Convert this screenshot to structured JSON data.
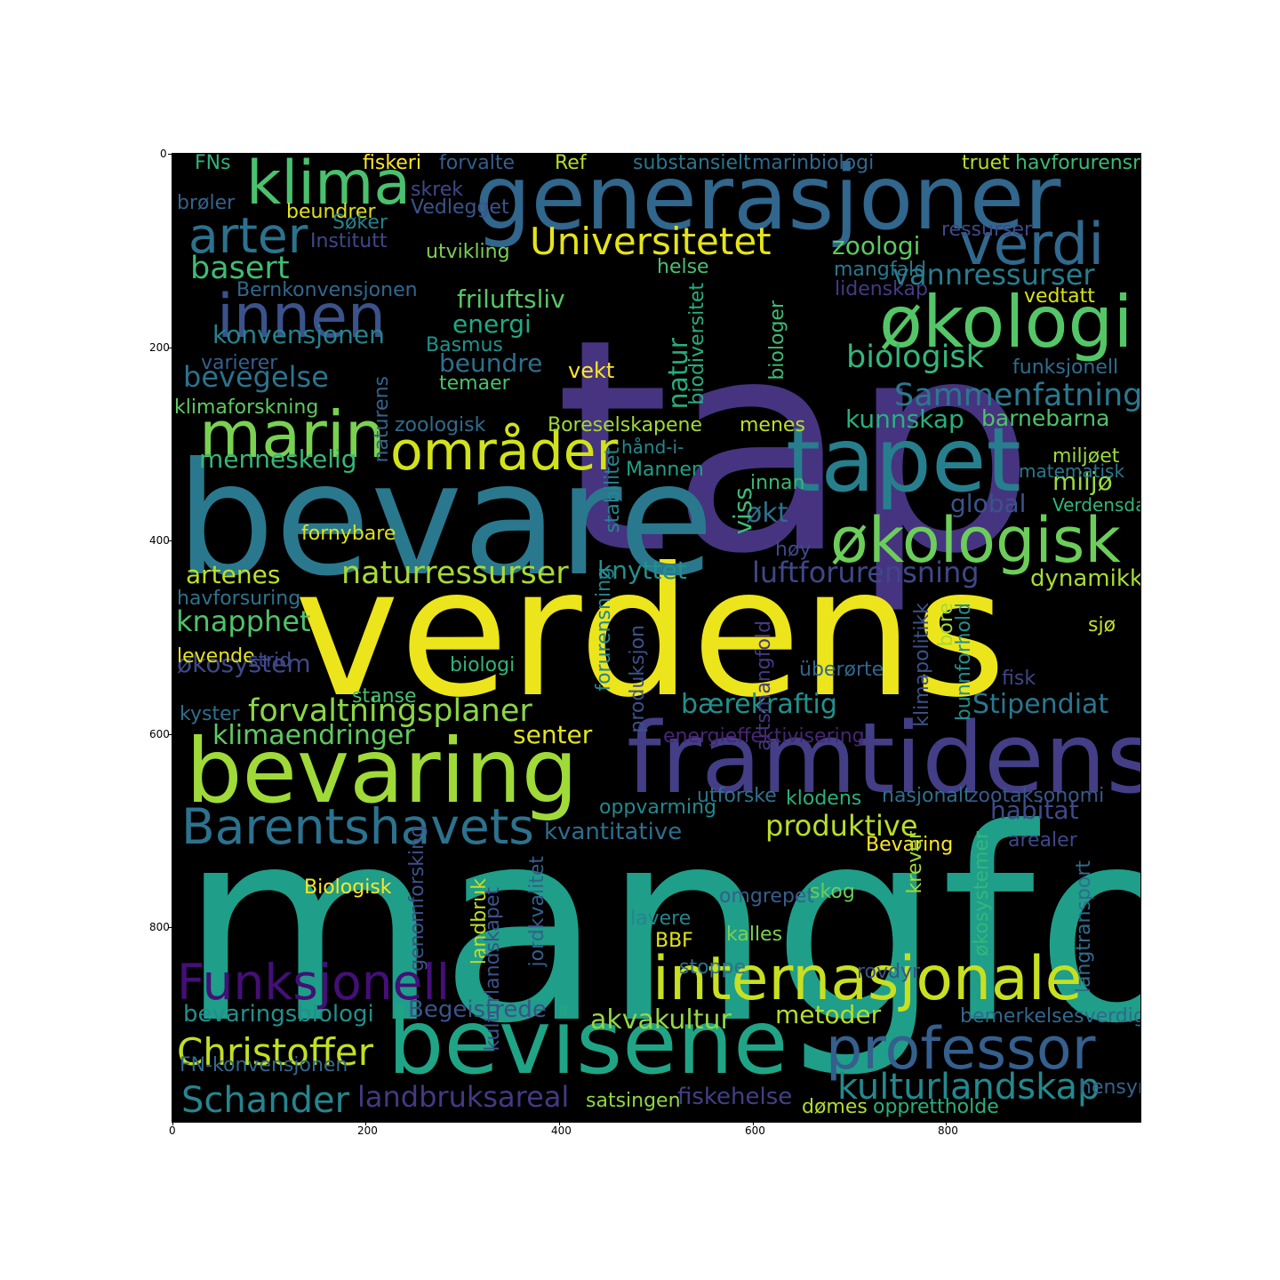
{
  "axes": {
    "x_ticks": [
      "0",
      "200",
      "400",
      "600",
      "800"
    ],
    "y_ticks": [
      "0",
      "200",
      "400",
      "600",
      "800"
    ]
  },
  "words": [
    {
      "t": "tap",
      "c": "#463480"
    },
    {
      "t": "mangfold",
      "c": "#1f9e89"
    },
    {
      "t": "verdens",
      "c": "#ede51b"
    },
    {
      "t": "bevare",
      "c": "#2a788e"
    },
    {
      "t": "generasjoner",
      "c": "#31668d"
    },
    {
      "t": "framtidens",
      "c": "#433e85"
    },
    {
      "t": "bevaring",
      "c": "#a0da39"
    },
    {
      "t": "bevisene",
      "c": "#20a486"
    },
    {
      "t": "tapet",
      "c": "#277f8e"
    },
    {
      "t": "økologi",
      "c": "#55c667"
    },
    {
      "t": "økologisk",
      "c": "#6ccd5a"
    },
    {
      "t": "internasjonale",
      "c": "#c8e020"
    },
    {
      "t": "professor",
      "c": "#355f8d"
    },
    {
      "t": "marin",
      "c": "#7ad151"
    },
    {
      "t": "klima",
      "c": "#4ac16d"
    },
    {
      "t": "innen",
      "c": "#3b528b"
    },
    {
      "t": "områder",
      "c": "#d2e21b"
    },
    {
      "t": "verdi",
      "c": "#31688e"
    },
    {
      "t": "arter",
      "c": "#2c728e"
    },
    {
      "t": "Barentshavets",
      "c": "#2c728e"
    },
    {
      "t": "Funksjonell",
      "c": "#440f76"
    },
    {
      "t": "Universitetet",
      "c": "#e5e419"
    },
    {
      "t": "Christoffer",
      "c": "#c2df23"
    },
    {
      "t": "Schander",
      "c": "#25858e"
    },
    {
      "t": "kulturlandskap",
      "c": "#23898e"
    },
    {
      "t": "forvaltningsplaner",
      "c": "#8bd646"
    },
    {
      "t": "naturressurser",
      "c": "#a8db34"
    },
    {
      "t": "basert",
      "c": "#3fbc73"
    },
    {
      "t": "biologisk",
      "c": "#35b779"
    },
    {
      "t": "Sammenfatning",
      "c": "#2a788e"
    },
    {
      "t": "vannressurser",
      "c": "#287c8e"
    },
    {
      "t": "bevegelse",
      "c": "#2c738e"
    },
    {
      "t": "luftforurensning",
      "c": "#3f4788"
    },
    {
      "t": "knapphet",
      "c": "#4ec36b"
    },
    {
      "t": "produktive",
      "c": "#bade28"
    },
    {
      "t": "landbruksareal",
      "c": "#443983"
    },
    {
      "t": "akvakultur",
      "c": "#93d741"
    },
    {
      "t": "klimaendringer",
      "c": "#5ec962"
    },
    {
      "t": "bærekraftig",
      "c": "#21918c"
    },
    {
      "t": "Stipendiat",
      "c": "#2a768e"
    },
    {
      "t": "friluftsliv",
      "c": "#56c667"
    },
    {
      "t": "konvensjonen",
      "c": "#26828e"
    },
    {
      "t": "menneskelig",
      "c": "#35b779"
    },
    {
      "t": "kunnskap",
      "c": "#29af7f"
    },
    {
      "t": "artenes",
      "c": "#c0df25"
    },
    {
      "t": "økosystem",
      "c": "#3e4989"
    },
    {
      "t": "zoologi",
      "c": "#5ec962"
    },
    {
      "t": "energi",
      "c": "#22a884"
    },
    {
      "t": "beundre",
      "c": "#2d708e"
    },
    {
      "t": "global",
      "c": "#3b528b"
    },
    {
      "t": "knyttet",
      "c": "#21918c"
    },
    {
      "t": "miljø",
      "c": "#9bd93c"
    },
    {
      "t": "habitat",
      "c": "#3e4a89"
    },
    {
      "t": "metoder",
      "c": "#b5de2b"
    },
    {
      "t": "senter",
      "c": "#e2e418"
    },
    {
      "t": "bevaringsbiologi",
      "c": "#21908d"
    },
    {
      "t": "Begeistrede",
      "c": "#3b528b"
    },
    {
      "t": "fiskehelse",
      "c": "#423f85"
    },
    {
      "t": "natur",
      "c": "#27ad81"
    },
    {
      "t": "økt",
      "c": "#2d708e"
    },
    {
      "t": "viss",
      "c": "#3dbc74"
    },
    {
      "t": "dynamikk",
      "c": "#a8db34"
    },
    {
      "t": "barnebarna",
      "c": "#4ec36b"
    },
    {
      "t": "kvantitative",
      "c": "#2e6e8e"
    },
    {
      "t": "klodens",
      "c": "#2ab07f"
    },
    {
      "t": "forurensning",
      "c": "#24868e"
    },
    {
      "t": "biodiversitet",
      "c": "#27ad81"
    },
    {
      "t": "FN-konvensjonen",
      "c": "#30698e"
    },
    {
      "t": "satsingen",
      "c": "#90d743"
    },
    {
      "t": "opprettholde",
      "c": "#2ab07f"
    },
    {
      "t": "dømes",
      "c": "#b0dd2f"
    },
    {
      "t": "hensyn",
      "c": "#33638d"
    },
    {
      "t": "bemerkelsesverdige",
      "c": "#31688e"
    },
    {
      "t": "temaer",
      "c": "#4ac16d"
    },
    {
      "t": "vekt",
      "c": "#fde725"
    },
    {
      "t": "funksjonell",
      "c": "#2f6c8e"
    },
    {
      "t": "miljøet",
      "c": "#9bd93c"
    },
    {
      "t": "matematisk",
      "c": "#2a788e"
    },
    {
      "t": "Verdensdag",
      "c": "#32b67a"
    },
    {
      "t": "Boreselskapene",
      "c": "#a2da37"
    },
    {
      "t": "zoologisk",
      "c": "#2f6c8e"
    },
    {
      "t": "naturens",
      "c": "#33638d"
    },
    {
      "t": "menes",
      "c": "#bddf26"
    },
    {
      "t": "innan",
      "c": "#38b977"
    },
    {
      "t": "hånd-i-",
      "c": "#23888e"
    },
    {
      "t": "Mannen",
      "c": "#1fa188"
    },
    {
      "t": "stabilitet",
      "c": "#24868e"
    },
    {
      "t": "klimaforskning",
      "c": "#5ec962"
    },
    {
      "t": "varierer",
      "c": "#355f8d"
    },
    {
      "t": "Basmus",
      "c": "#1f948c"
    },
    {
      "t": "Bernkonvensjonen",
      "c": "#31688e"
    },
    {
      "t": "helse",
      "c": "#48c16e"
    },
    {
      "t": "utvikling",
      "c": "#7ad151"
    },
    {
      "t": "Institutt",
      "c": "#3e4989"
    },
    {
      "t": "beundrer",
      "c": "#dfe318"
    },
    {
      "t": "Søker",
      "c": "#26828e"
    },
    {
      "t": "Vedlegget",
      "c": "#3a548c"
    },
    {
      "t": "skrek",
      "c": "#3f4889"
    },
    {
      "t": "brøler",
      "c": "#33638d"
    },
    {
      "t": "FNs",
      "c": "#2eb37c"
    },
    {
      "t": "fiskeri",
      "c": "#fde725"
    },
    {
      "t": "forvalte",
      "c": "#355e8d"
    },
    {
      "t": "Ref",
      "c": "#b5de2b"
    },
    {
      "t": "substansielt",
      "c": "#2a768e"
    },
    {
      "t": "marinbiologi",
      "c": "#31688e"
    },
    {
      "t": "truet",
      "c": "#b5de2b"
    },
    {
      "t": "havforurensning",
      "c": "#3bbb75"
    },
    {
      "t": "ressurser",
      "c": "#3e4989"
    },
    {
      "t": "mangfald",
      "c": "#2a788e"
    },
    {
      "t": "lidenskap",
      "c": "#443a83"
    },
    {
      "t": "vedtatt",
      "c": "#d8e219"
    },
    {
      "t": "biologer",
      "c": "#3dbc74"
    },
    {
      "t": "fornybare",
      "c": "#dde318"
    },
    {
      "t": "høy",
      "c": "#3e4989"
    },
    {
      "t": "havforsuring",
      "c": "#2c738e"
    },
    {
      "t": "levende",
      "c": "#e5e419"
    },
    {
      "t": "strid",
      "c": "#3e4989"
    },
    {
      "t": "biologi",
      "c": "#2fb47c"
    },
    {
      "t": "stanse",
      "c": "#44bf70"
    },
    {
      "t": "kyster",
      "c": "#2d708e"
    },
    {
      "t": "produksjon",
      "c": "#3b528b"
    },
    {
      "t": "artsmangfold",
      "c": "#443983"
    },
    {
      "t": "überørte",
      "c": "#31668d"
    },
    {
      "t": "bore",
      "c": "#a2da37"
    },
    {
      "t": "bunnforhold",
      "c": "#21908d"
    },
    {
      "t": "klimapolitikk",
      "c": "#3b528b"
    },
    {
      "t": "fisk",
      "c": "#3f4788"
    },
    {
      "t": "sjø",
      "c": "#c8e020"
    },
    {
      "t": "energieffektivisering",
      "c": "#482576"
    },
    {
      "t": "oppvarming",
      "c": "#23898e"
    },
    {
      "t": "utforske",
      "c": "#2c738e"
    },
    {
      "t": "nasjonalt",
      "c": "#2e6e8e"
    },
    {
      "t": "zootaksonomi",
      "c": "#38598c"
    },
    {
      "t": "arealer",
      "c": "#3f4889"
    },
    {
      "t": "Bevaring",
      "c": "#fde725"
    },
    {
      "t": "genomforsking",
      "c": "#3b528b"
    },
    {
      "t": "jordkvalitet",
      "c": "#355f8d"
    },
    {
      "t": "landbruk",
      "c": "#c2df23"
    },
    {
      "t": "kulturlandskapet",
      "c": "#3b528b"
    },
    {
      "t": "Biologisk",
      "c": "#fde725"
    },
    {
      "t": "omgrepet",
      "c": "#355f8d"
    },
    {
      "t": "skog",
      "c": "#6ccd5a"
    },
    {
      "t": "krever",
      "c": "#a2da37"
    },
    {
      "t": "økosystemer",
      "c": "#35b779"
    },
    {
      "t": "langtransport",
      "c": "#2f6c8e"
    },
    {
      "t": "lavere",
      "c": "#25848e"
    },
    {
      "t": "BBF",
      "c": "#e2e418"
    },
    {
      "t": "kalles",
      "c": "#7ad151"
    },
    {
      "t": "stoppe",
      "c": "#2c728e"
    },
    {
      "t": "rovdyr",
      "c": "#3b528b"
    }
  ]
}
